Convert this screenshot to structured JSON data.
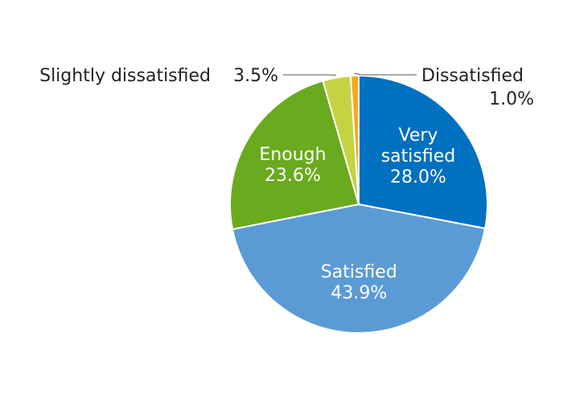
{
  "chart_data": {
    "type": "pie",
    "title": "",
    "start_angle_deg": 0,
    "direction": "clockwise",
    "slices": [
      {
        "label": "Very satisfied",
        "display_lines": [
          "Very",
          "satisfied"
        ],
        "value": 28.0,
        "value_label": "28.0%",
        "color": "#0070c0",
        "label_position": "inside"
      },
      {
        "label": "Satisfied",
        "display_lines": [
          "Satisfied"
        ],
        "value": 43.9,
        "value_label": "43.9%",
        "color": "#5b9bd5",
        "label_position": "inside"
      },
      {
        "label": "Enough",
        "display_lines": [
          "Enough"
        ],
        "value": 23.6,
        "value_label": "23.6%",
        "color": "#6aaa1e",
        "label_position": "inside"
      },
      {
        "label": "Slightly dissatisfied",
        "display_lines": [
          "Slightly dissatisfied"
        ],
        "value": 3.5,
        "value_label": "3.5%",
        "color": "#c5d343",
        "label_position": "outside-left"
      },
      {
        "label": "Dissatisfied",
        "display_lines": [
          "Dissatisfied"
        ],
        "value": 1.0,
        "value_label": "1.0%",
        "color": "#f6a81c",
        "label_position": "outside-right"
      }
    ],
    "legend": "none"
  }
}
